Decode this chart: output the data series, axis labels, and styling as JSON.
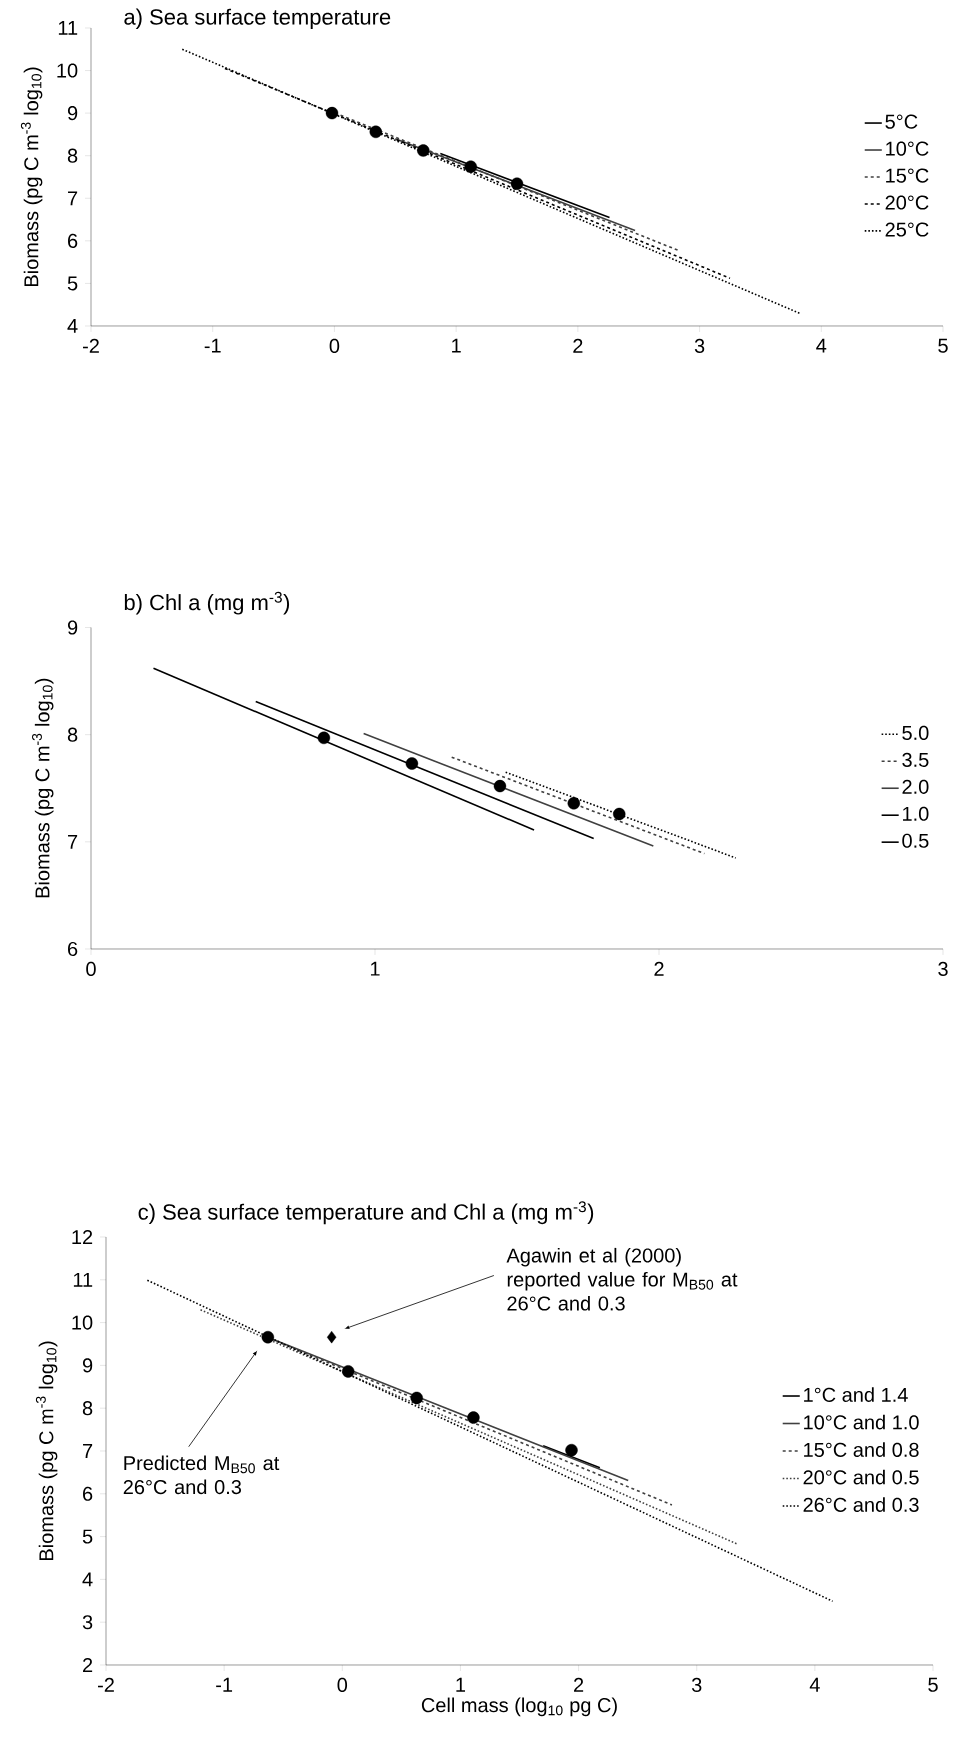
{
  "chart_data": [
    {
      "type": "line",
      "title": "a) Sea surface temperature",
      "ylabel": "Biomass (pg C m$^{-3}$ log$_{10}$)",
      "xlim": [
        -2,
        5
      ],
      "xticks": [
        -2,
        -1,
        0,
        1,
        2,
        3,
        4,
        5
      ],
      "ylim": [
        4,
        11
      ],
      "yticks": [
        4,
        5,
        6,
        7,
        8,
        9,
        10,
        11
      ],
      "grid": false,
      "legend": "right",
      "series": [
        {
          "name": "5°C",
          "color": "#000000",
          "line_style": "solid",
          "x": [
            0.87,
            2.26
          ],
          "values": [
            8.05,
            6.55
          ]
        },
        {
          "name": "10°C",
          "color": "#404040",
          "line_style": "solid",
          "x": [
            0.5,
            2.47
          ],
          "values": [
            8.4,
            6.24
          ]
        },
        {
          "name": "15°C",
          "color": "#404040",
          "line_style": "dashed",
          "x": [
            0.05,
            2.83
          ],
          "values": [
            8.95,
            5.77
          ]
        },
        {
          "name": "20°C",
          "color": "#000000",
          "line_style": "dashed",
          "x": [
            -0.9,
            3.25
          ],
          "values": [
            10.05,
            5.12
          ]
        },
        {
          "name": "25°C",
          "color": "#000000",
          "line_style": "dotted",
          "x": [
            -1.25,
            3.82
          ],
          "values": [
            10.5,
            4.3
          ]
        },
        {
          "type": "scatter",
          "marker": "circle",
          "color": "#000000",
          "x": [
            -0.02,
            0.34,
            0.73,
            1.12,
            1.5
          ],
          "values": [
            9.0,
            8.56,
            8.12,
            7.74,
            7.34
          ]
        }
      ]
    },
    {
      "type": "line",
      "title": "b) Chl a (mg m$^{-3}$)",
      "ylabel": "Biomass (pg C m$^{-3}$ log$_{10}$)",
      "xlim": [
        0,
        3
      ],
      "xticks": [
        0,
        1,
        2,
        3
      ],
      "ylim": [
        6,
        9
      ],
      "yticks": [
        6,
        7,
        8,
        9
      ],
      "grid": false,
      "legend": "right",
      "series": [
        {
          "name": "5.0",
          "color": "#000000",
          "line_style": "dotted",
          "x": [
            1.46,
            2.27
          ],
          "values": [
            7.65,
            6.85
          ]
        },
        {
          "name": "3.5",
          "color": "#404040",
          "line_style": "dashed",
          "x": [
            1.27,
            2.16
          ],
          "values": [
            7.79,
            6.89
          ]
        },
        {
          "name": "2.0",
          "color": "#404040",
          "line_style": "solid",
          "x": [
            0.96,
            1.98
          ],
          "values": [
            8.01,
            6.96
          ]
        },
        {
          "name": "1.0",
          "color": "#000000",
          "line_style": "solid",
          "x": [
            0.58,
            1.77
          ],
          "values": [
            8.31,
            7.03
          ]
        },
        {
          "name": "0.5",
          "color": "#000000",
          "line_style": "solid",
          "x": [
            0.22,
            1.56
          ],
          "values": [
            8.62,
            7.11
          ]
        },
        {
          "type": "scatter",
          "marker": "circle",
          "color": "#000000",
          "x": [
            0.82,
            1.13,
            1.44,
            1.7,
            1.86
          ],
          "values": [
            7.97,
            7.73,
            7.52,
            7.36,
            7.26
          ]
        }
      ]
    },
    {
      "type": "line",
      "title": "c) Sea surface temperature and Chl a (mg m$^{-3}$)",
      "xlabel": "Cell mass (log$_{10}$ pg C)",
      "ylabel": "Biomass (pg C m$^{-3}$ log$_{10}$)",
      "xlim": [
        -2,
        5
      ],
      "xticks": [
        -2,
        -1,
        0,
        1,
        2,
        3,
        4,
        5
      ],
      "ylim": [
        2,
        12
      ],
      "yticks": [
        2,
        3,
        4,
        5,
        6,
        7,
        8,
        9,
        10,
        11,
        12
      ],
      "grid": false,
      "legend": "right",
      "annotations": [
        "Agawin et al (2000) reported value for M$_{B50}$ at 26°C and 0.3",
        "Predicted M$_{B50}$ at 26°C and 0.3"
      ],
      "series": [
        {
          "name": "1°C and 1.4",
          "color": "#000000",
          "line_style": "solid",
          "x": [
            1.7,
            2.18
          ],
          "values": [
            7.12,
            6.61
          ]
        },
        {
          "name": "10°C and 1.0",
          "color": "#404040",
          "line_style": "solid",
          "x": [
            -0.6,
            2.42
          ],
          "values": [
            9.62,
            6.31
          ]
        },
        {
          "name": "15°C and 0.8",
          "color": "#404040",
          "line_style": "dashed",
          "x": [
            -0.65,
            2.79
          ],
          "values": [
            9.67,
            5.74
          ]
        },
        {
          "name": "20°C and 0.5",
          "color": "#404040",
          "line_style": "dotted",
          "x": [
            -1.2,
            3.34
          ],
          "values": [
            10.3,
            4.83
          ]
        },
        {
          "name": "26°C and 0.3",
          "color": "#000000",
          "line_style": "dotted",
          "x": [
            -1.65,
            4.15
          ],
          "values": [
            10.99,
            3.49
          ]
        },
        {
          "type": "scatter",
          "marker": "circle",
          "color": "#000000",
          "x": [
            -0.63,
            0.05,
            0.63,
            1.11,
            1.94
          ],
          "values": [
            9.66,
            8.86,
            8.24,
            7.78,
            7.02
          ]
        },
        {
          "type": "scatter",
          "marker": "diamond",
          "color": "#000000",
          "x": [
            -0.09
          ],
          "values": [
            9.66
          ]
        }
      ]
    }
  ]
}
